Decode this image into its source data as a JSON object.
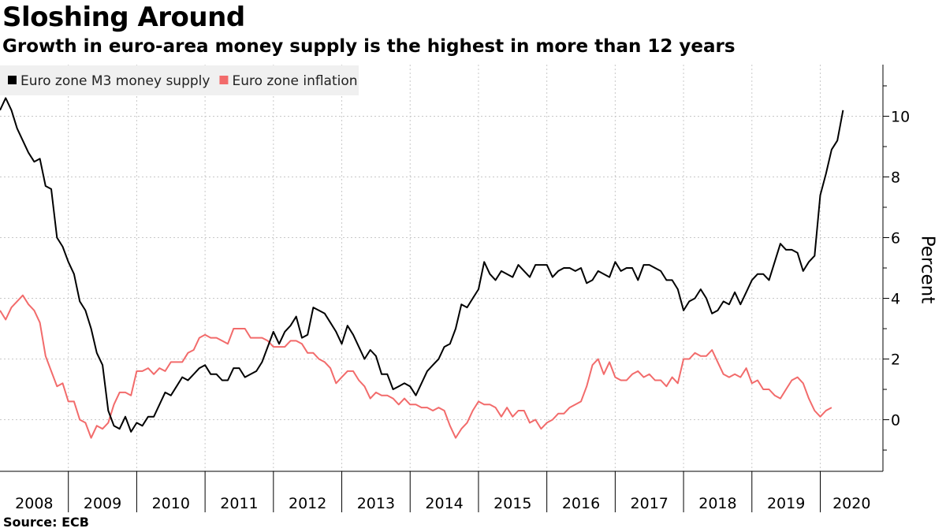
{
  "title": "Sloshing Around",
  "subtitle": "Growth in euro-area money supply is the highest in more than 12 years",
  "source": "Source:  ECB",
  "chart_data": {
    "type": "line",
    "ylabel": "Percent",
    "ylim": [
      -1.7,
      11.7
    ],
    "yticks": [
      0,
      2,
      4,
      6,
      8,
      10
    ],
    "xlim": [
      2008.0,
      2020.917
    ],
    "year_labels": [
      "2008",
      "2009",
      "2010",
      "2011",
      "2012",
      "2013",
      "2014",
      "2015",
      "2016",
      "2017",
      "2018",
      "2019",
      "2020"
    ],
    "grid": true,
    "legend_position": "top-left",
    "series": [
      {
        "name": "Euro zone M3 money supply",
        "color": "#000000",
        "start": "2008-01",
        "frequency": "monthly",
        "values": [
          10.2,
          10.6,
          10.2,
          9.6,
          9.2,
          8.8,
          8.5,
          8.6,
          7.7,
          7.6,
          6.0,
          5.7,
          5.2,
          4.8,
          3.9,
          3.6,
          3.0,
          2.2,
          1.8,
          0.3,
          -0.2,
          -0.3,
          0.1,
          -0.4,
          -0.1,
          -0.2,
          0.1,
          0.1,
          0.5,
          0.9,
          0.8,
          1.1,
          1.4,
          1.3,
          1.5,
          1.7,
          1.8,
          1.5,
          1.5,
          1.3,
          1.3,
          1.7,
          1.7,
          1.4,
          1.5,
          1.6,
          1.9,
          2.4,
          2.9,
          2.5,
          2.9,
          3.1,
          3.4,
          2.7,
          2.8,
          3.7,
          3.6,
          3.5,
          3.2,
          2.9,
          2.5,
          3.1,
          2.8,
          2.4,
          2.0,
          2.3,
          2.1,
          1.5,
          1.5,
          1.0,
          1.1,
          1.2,
          1.1,
          0.8,
          1.2,
          1.6,
          1.8,
          2.0,
          2.4,
          2.5,
          3.0,
          3.8,
          3.7,
          4.0,
          4.3,
          5.2,
          4.8,
          4.6,
          4.9,
          4.8,
          4.7,
          5.1,
          4.9,
          4.7,
          5.1,
          5.1,
          5.1,
          4.7,
          4.9,
          5.0,
          5.0,
          4.9,
          5.0,
          4.5,
          4.6,
          4.9,
          4.8,
          4.7,
          5.2,
          4.9,
          5.0,
          5.0,
          4.6,
          5.1,
          5.1,
          5.0,
          4.9,
          4.6,
          4.6,
          4.3,
          3.6,
          3.9,
          4.0,
          4.3,
          4.0,
          3.5,
          3.6,
          3.9,
          3.8,
          4.2,
          3.8,
          4.2,
          4.6,
          4.8,
          4.8,
          4.6,
          5.2,
          5.8,
          5.6,
          5.6,
          5.5,
          4.9,
          5.2,
          5.4,
          7.4,
          8.1,
          8.9,
          9.2,
          10.2
        ]
      },
      {
        "name": "Euro zone inflation",
        "color": "#f26b6b",
        "start": "2008-01",
        "frequency": "monthly",
        "values": [
          3.6,
          3.3,
          3.7,
          3.9,
          4.1,
          3.8,
          3.6,
          3.2,
          2.1,
          1.6,
          1.1,
          1.2,
          0.6,
          0.6,
          0.0,
          -0.1,
          -0.6,
          -0.2,
          -0.3,
          -0.1,
          0.5,
          0.9,
          0.9,
          0.8,
          1.6,
          1.6,
          1.7,
          1.5,
          1.7,
          1.6,
          1.9,
          1.9,
          1.9,
          2.2,
          2.3,
          2.7,
          2.8,
          2.7,
          2.7,
          2.6,
          2.5,
          3.0,
          3.0,
          3.0,
          2.7,
          2.7,
          2.7,
          2.6,
          2.4,
          2.4,
          2.4,
          2.6,
          2.6,
          2.5,
          2.2,
          2.2,
          2.0,
          1.9,
          1.7,
          1.2,
          1.4,
          1.6,
          1.6,
          1.3,
          1.1,
          0.7,
          0.9,
          0.8,
          0.8,
          0.7,
          0.5,
          0.7,
          0.5,
          0.5,
          0.4,
          0.4,
          0.3,
          0.4,
          0.3,
          -0.2,
          -0.6,
          -0.3,
          -0.1,
          0.3,
          0.6,
          0.5,
          0.5,
          0.4,
          0.1,
          0.4,
          0.1,
          0.3,
          0.3,
          -0.1,
          0.0,
          -0.3,
          -0.1,
          0.0,
          0.2,
          0.2,
          0.4,
          0.5,
          0.6,
          1.1,
          1.8,
          2.0,
          1.5,
          1.9,
          1.4,
          1.3,
          1.3,
          1.5,
          1.6,
          1.4,
          1.5,
          1.3,
          1.3,
          1.1,
          1.4,
          1.2,
          2.0,
          2.0,
          2.2,
          2.1,
          2.1,
          2.3,
          1.9,
          1.5,
          1.4,
          1.5,
          1.4,
          1.7,
          1.2,
          1.3,
          1.0,
          1.0,
          0.8,
          0.7,
          1.0,
          1.3,
          1.4,
          1.2,
          0.7,
          0.3,
          0.1,
          0.3,
          0.4
        ]
      }
    ]
  }
}
